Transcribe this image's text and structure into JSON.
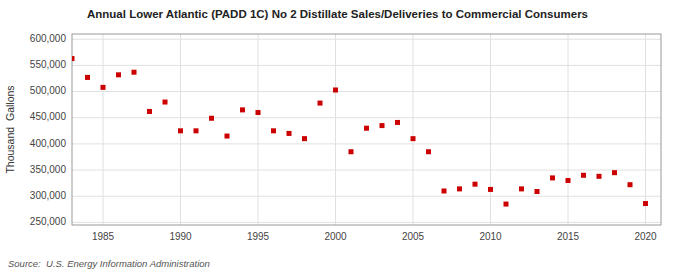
{
  "chart_data": {
    "type": "scatter",
    "title": "Annual Lower Atlantic (PADD 1C) No 2 Distillate Sales/Deliveries to Commercial Consumers",
    "ylabel": "Thousand  Gallons",
    "source": "Source:  U.S. Energy Information Administration",
    "color": "#cc0000",
    "marker": "square",
    "grid": true,
    "xlim": [
      1983,
      2021
    ],
    "ylim": [
      245000,
      610000
    ],
    "xticks": [
      1985,
      1990,
      1995,
      2000,
      2005,
      2010,
      2015,
      2020
    ],
    "yticks": [
      {
        "value": 250000,
        "label": "250,000"
      },
      {
        "value": 300000,
        "label": "300,000"
      },
      {
        "value": 350000,
        "label": "350,000"
      },
      {
        "value": 400000,
        "label": "400,000"
      },
      {
        "value": 450000,
        "label": "450,000"
      },
      {
        "value": 500000,
        "label": "500,000"
      },
      {
        "value": 550000,
        "label": "550,000"
      },
      {
        "value": 600000,
        "label": "600,000"
      }
    ],
    "x": [
      1983,
      1984,
      1985,
      1986,
      1987,
      1988,
      1989,
      1990,
      1991,
      1992,
      1993,
      1994,
      1995,
      1996,
      1997,
      1998,
      1999,
      2000,
      2001,
      2002,
      2003,
      2004,
      2005,
      2006,
      2007,
      2008,
      2009,
      2010,
      2011,
      2012,
      2013,
      2014,
      2015,
      2016,
      2017,
      2018,
      2019,
      2020
    ],
    "values": [
      563000,
      527000,
      508000,
      532000,
      537000,
      462000,
      480000,
      425000,
      425000,
      449000,
      415000,
      465000,
      460000,
      425000,
      420000,
      410000,
      478000,
      503000,
      385000,
      430000,
      435000,
      441000,
      410000,
      385000,
      310000,
      314000,
      323000,
      313000,
      285000,
      314000,
      309000,
      335000,
      330000,
      340000,
      338000,
      345000,
      322000,
      286000
    ]
  }
}
